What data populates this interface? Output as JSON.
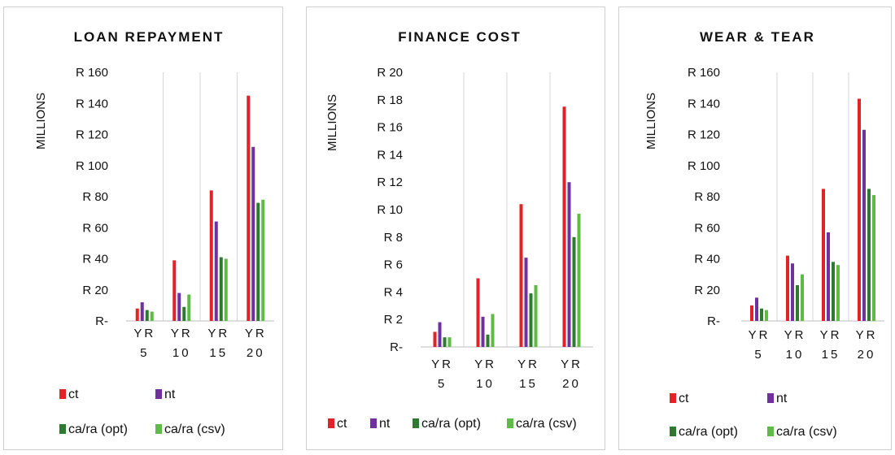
{
  "colors": {
    "ct": "#e32227",
    "nt": "#7030a0",
    "ca_ra_opt": "#2f7a31",
    "ca_ra_csv": "#5dbb46"
  },
  "chart_data": [
    {
      "type": "bar",
      "title": "LOAN REPAYMENT",
      "ylabel": "MILLIONS",
      "ylim": [
        0,
        160
      ],
      "ytick_labels": [
        "R-",
        "R 20",
        "R 40",
        "R 60",
        "R 80",
        "R 100",
        "R 120",
        "R 140",
        "R 160"
      ],
      "categories": [
        [
          "YR",
          "5"
        ],
        [
          "YR",
          "10"
        ],
        [
          "YR",
          "15"
        ],
        [
          "YR",
          "20"
        ]
      ],
      "series": [
        {
          "name": "ct",
          "values": [
            8,
            39,
            84,
            145
          ]
        },
        {
          "name": "nt",
          "values": [
            12,
            18,
            64,
            112
          ]
        },
        {
          "name": "ca/ra (opt)",
          "values": [
            7,
            9,
            41,
            76
          ]
        },
        {
          "name": "ca/ra (csv)",
          "values": [
            6,
            17,
            40,
            78
          ]
        }
      ],
      "legend": "bottom",
      "grid": false
    },
    {
      "type": "bar",
      "title": "FINANCE COST",
      "ylabel": "MILLIONS",
      "ylim": [
        0,
        20
      ],
      "ytick_labels": [
        "R-",
        "R 2",
        "R 4",
        "R 6",
        "R 8",
        "R 10",
        "R 12",
        "R 14",
        "R 16",
        "R 18",
        "R 20"
      ],
      "categories": [
        [
          "YR",
          "5"
        ],
        [
          "YR",
          "10"
        ],
        [
          "YR",
          "15"
        ],
        [
          "YR",
          "20"
        ]
      ],
      "series": [
        {
          "name": "ct",
          "values": [
            1.1,
            5.0,
            10.4,
            17.5
          ]
        },
        {
          "name": "nt",
          "values": [
            1.8,
            2.2,
            6.5,
            12.0
          ]
        },
        {
          "name": "ca/ra (opt)",
          "values": [
            0.7,
            0.9,
            3.9,
            8.0
          ]
        },
        {
          "name": "ca/ra (csv)",
          "values": [
            0.7,
            2.4,
            4.5,
            9.7
          ]
        }
      ],
      "legend": "bottom",
      "grid": false
    },
    {
      "type": "bar",
      "title": "WEAR & TEAR",
      "ylabel": "MILLIONS",
      "ylim": [
        0,
        160
      ],
      "ytick_labels": [
        "R-",
        "R 20",
        "R 40",
        "R 60",
        "R 80",
        "R 100",
        "R 120",
        "R 140",
        "R 160"
      ],
      "categories": [
        [
          "YR",
          "5"
        ],
        [
          "YR",
          "10"
        ],
        [
          "YR",
          "15"
        ],
        [
          "YR",
          "20"
        ]
      ],
      "series": [
        {
          "name": "ct",
          "values": [
            10,
            42,
            85,
            143
          ]
        },
        {
          "name": "nt",
          "values": [
            15,
            37,
            57,
            123
          ]
        },
        {
          "name": "ca/ra (opt)",
          "values": [
            8,
            23,
            38,
            85
          ]
        },
        {
          "name": "ca/ra (csv)",
          "values": [
            7,
            30,
            36,
            81
          ]
        }
      ],
      "legend": "bottom",
      "grid": false
    }
  ]
}
